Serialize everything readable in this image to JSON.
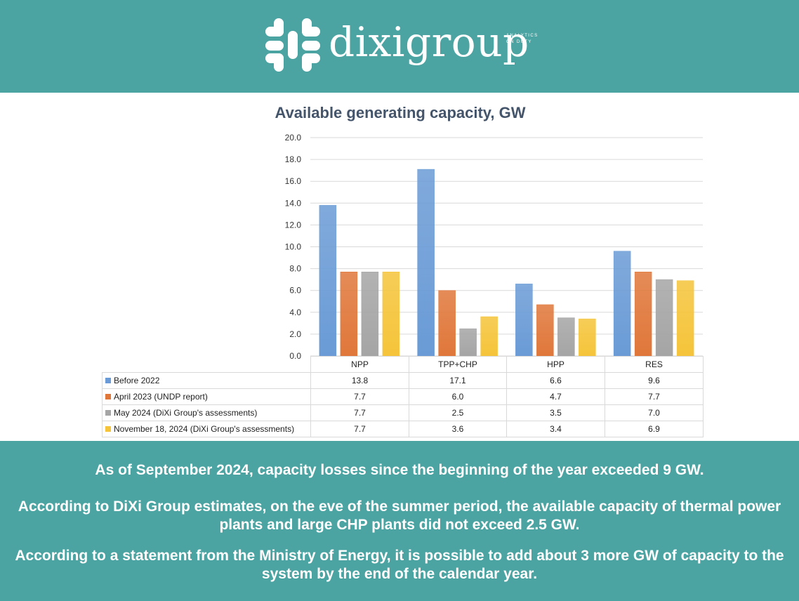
{
  "brand": {
    "name": "dixigroup",
    "tagline": "ANALYTICS ON DUTY",
    "color": "#4ba4a2"
  },
  "chart_data": {
    "type": "bar",
    "title": "Available generating capacity, GW",
    "categories": [
      "NPP",
      "TPP+CHP",
      "HPP",
      "RES"
    ],
    "series": [
      {
        "name": "Before 2022",
        "color": "#6a9bd6",
        "values": [
          13.8,
          17.1,
          6.6,
          9.6
        ],
        "labels": [
          "13.8",
          "17.1",
          "6.6",
          "9.6"
        ]
      },
      {
        "name": "April 2023 (UNDP report)",
        "color": "#e0773a",
        "values": [
          7.7,
          6.0,
          4.7,
          7.7
        ],
        "labels": [
          "7.7",
          "6.0",
          "4.7",
          "7.7"
        ]
      },
      {
        "name": "May 2024 (DiXi Group's assessments)",
        "color": "#a5a5a5",
        "values": [
          7.7,
          2.5,
          3.5,
          7.0
        ],
        "labels": [
          "7.7",
          "2.5",
          "3.5",
          "7.0"
        ]
      },
      {
        "name": "November 18, 2024 (DiXi Group's assessments)",
        "color": "#f5c43a",
        "values": [
          7.7,
          3.6,
          3.4,
          6.9
        ],
        "labels": [
          "7.7",
          "3.6",
          "3.4",
          "6.9"
        ]
      }
    ],
    "y_ticks": [
      "0.0",
      "2.0",
      "4.0",
      "6.0",
      "8.0",
      "10.0",
      "12.0",
      "14.0",
      "16.0",
      "18.0",
      "20.0"
    ],
    "ylim": [
      0,
      20
    ],
    "grid": true,
    "legend": "data table below chart"
  },
  "footer": {
    "p1": "As of September 2024, capacity losses since the beginning of the year exceeded 9 GW.",
    "p2": "According to DiXi Group estimates, on the eve of the summer period, the available capacity of thermal power plants and large CHP plants did not exceed 2.5 GW.",
    "p3": "According to a statement from the Ministry of Energy, it is possible to add about 3 more GW of capacity to the system by the end of the calendar year."
  }
}
